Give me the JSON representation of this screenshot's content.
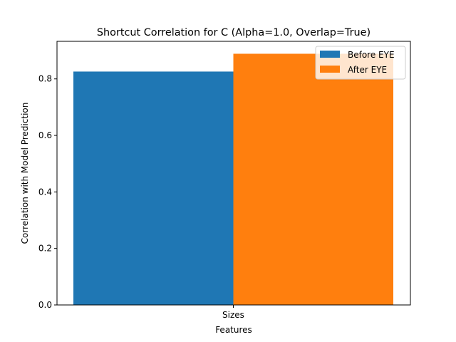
{
  "chart_data": {
    "type": "bar",
    "title": "Shortcut Correlation for C (Alpha=1.0, Overlap=True)",
    "xlabel": "Features",
    "ylabel": "Correlation with Model Prediction",
    "categories": [
      "Sizes"
    ],
    "series": [
      {
        "name": "Before EYE",
        "values": [
          0.826
        ],
        "color": "#1f77b4"
      },
      {
        "name": "After EYE",
        "values": [
          0.889
        ],
        "color": "#ff7f0e"
      }
    ],
    "ylim": [
      0,
      0.933
    ],
    "yticks": [
      0.0,
      0.2,
      0.4,
      0.6,
      0.8
    ],
    "ytick_labels": [
      "0.0",
      "0.2",
      "0.4",
      "0.6",
      "0.8"
    ],
    "grid": false,
    "legend_position": "top-right"
  }
}
